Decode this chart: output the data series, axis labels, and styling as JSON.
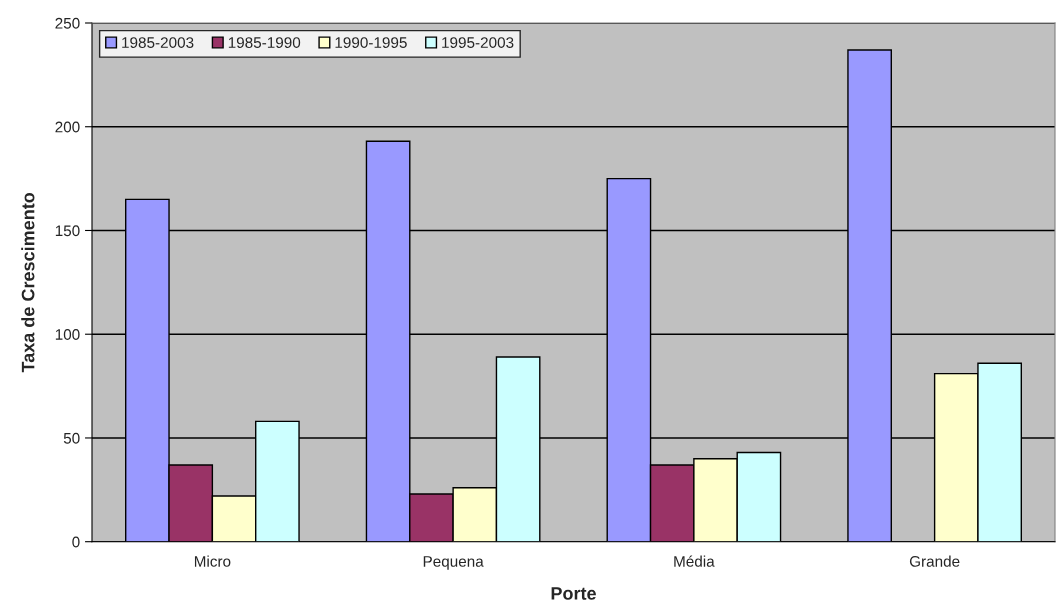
{
  "chart_data": {
    "type": "bar",
    "xlabel": "Porte",
    "ylabel": "Taxa de Crescimento",
    "categories": [
      "Micro",
      "Pequena",
      "Média",
      "Grande"
    ],
    "series": [
      {
        "name": "1985-2003",
        "color": "#9999ff",
        "values": [
          165,
          193,
          175,
          237
        ]
      },
      {
        "name": "1985-1990",
        "color": "#993366",
        "values": [
          37,
          23,
          37,
          null
        ]
      },
      {
        "name": "1990-1995",
        "color": "#ffffcc",
        "values": [
          22,
          26,
          40,
          81
        ]
      },
      {
        "name": "1995-2003",
        "color": "#ccffff",
        "values": [
          58,
          89,
          43,
          86
        ]
      }
    ],
    "ylim": [
      0,
      250
    ],
    "yticks": [
      0,
      50,
      100,
      150,
      200,
      250
    ],
    "grid": "y",
    "legend": "top left"
  }
}
